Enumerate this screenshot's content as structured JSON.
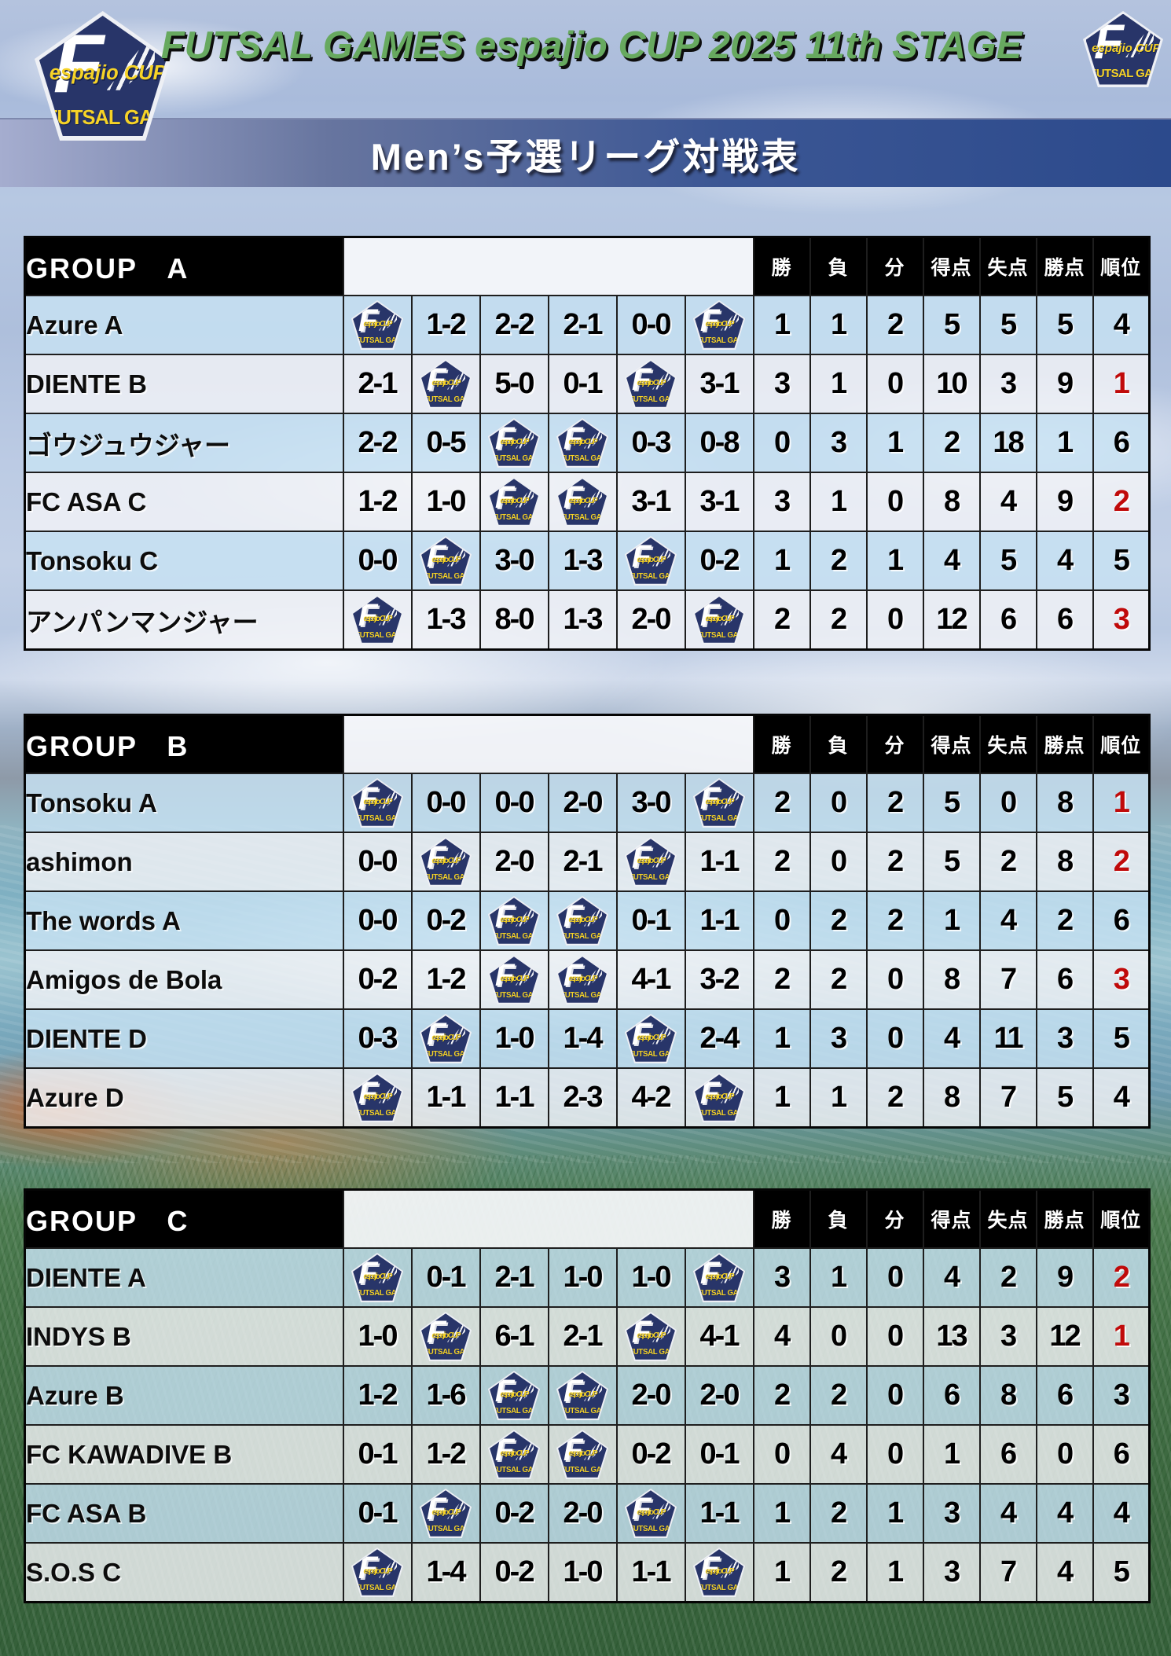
{
  "header": {
    "title": "FUTSAL GAMES espajio CUP 2025 11th STAGE",
    "banner": "Men’s予選リーグ対戦表"
  },
  "logo": {
    "letter": "F",
    "cup": "espajio CUP",
    "games": "FUTSAL GAMES"
  },
  "stat_headers": [
    {
      "key": "win",
      "label": "勝"
    },
    {
      "key": "loss",
      "label": "負"
    },
    {
      "key": "draw",
      "label": "分"
    },
    {
      "key": "goals-for",
      "label": "得点"
    },
    {
      "key": "goals-against",
      "label": "失点"
    },
    {
      "key": "points",
      "label": "勝点"
    },
    {
      "key": "rank",
      "label": "順位"
    }
  ],
  "groups": [
    {
      "label": "GROUP　A",
      "teams": [
        {
          "name": "Azure A",
          "cells": [
            "",
            "1-2",
            "2-2",
            "2-1",
            "0-0",
            ""
          ],
          "stats": [
            1,
            1,
            2,
            5,
            5,
            5
          ],
          "rank": 4,
          "rank_red": false
        },
        {
          "name": "DIENTE B",
          "cells": [
            "2-1",
            "",
            "5-0",
            "0-1",
            "",
            "3-1"
          ],
          "stats": [
            3,
            1,
            0,
            10,
            3,
            9
          ],
          "rank": 1,
          "rank_red": true
        },
        {
          "name": "ゴウジュウジャー",
          "cells": [
            "2-2",
            "0-5",
            "",
            "",
            "0-3",
            "0-8"
          ],
          "stats": [
            0,
            3,
            1,
            2,
            18,
            1
          ],
          "rank": 6,
          "rank_red": false
        },
        {
          "name": "FC ASA C",
          "cells": [
            "1-2",
            "1-0",
            "",
            "",
            "3-1",
            "3-1"
          ],
          "stats": [
            3,
            1,
            0,
            8,
            4,
            9
          ],
          "rank": 2,
          "rank_red": true
        },
        {
          "name": "Tonsoku C",
          "cells": [
            "0-0",
            "",
            "3-0",
            "1-3",
            "",
            "0-2"
          ],
          "stats": [
            1,
            2,
            1,
            4,
            5,
            4
          ],
          "rank": 5,
          "rank_red": false
        },
        {
          "name": "アンパンマンジャー",
          "cells": [
            "",
            "1-3",
            "8-0",
            "1-3",
            "2-0",
            ""
          ],
          "stats": [
            2,
            2,
            0,
            12,
            6,
            6
          ],
          "rank": 3,
          "rank_red": true
        }
      ]
    },
    {
      "label": "GROUP　B",
      "teams": [
        {
          "name": "Tonsoku A",
          "cells": [
            "",
            "0-0",
            "0-0",
            "2-0",
            "3-0",
            ""
          ],
          "stats": [
            2,
            0,
            2,
            5,
            0,
            8
          ],
          "rank": 1,
          "rank_red": true
        },
        {
          "name": "ashimon",
          "cells": [
            "0-0",
            "",
            "2-0",
            "2-1",
            "",
            "1-1"
          ],
          "stats": [
            2,
            0,
            2,
            5,
            2,
            8
          ],
          "rank": 2,
          "rank_red": true
        },
        {
          "name": "The words A",
          "cells": [
            "0-0",
            "0-2",
            "",
            "",
            "0-1",
            "1-1"
          ],
          "stats": [
            0,
            2,
            2,
            1,
            4,
            2
          ],
          "rank": 6,
          "rank_red": false
        },
        {
          "name": "Amigos de Bola",
          "cells": [
            "0-2",
            "1-2",
            "",
            "",
            "4-1",
            "3-2"
          ],
          "stats": [
            2,
            2,
            0,
            8,
            7,
            6
          ],
          "rank": 3,
          "rank_red": true
        },
        {
          "name": "DIENTE D",
          "cells": [
            "0-3",
            "",
            "1-0",
            "1-4",
            "",
            "2-4"
          ],
          "stats": [
            1,
            3,
            0,
            4,
            11,
            3
          ],
          "rank": 5,
          "rank_red": false
        },
        {
          "name": "Azure D",
          "cells": [
            "",
            "1-1",
            "1-1",
            "2-3",
            "4-2",
            ""
          ],
          "stats": [
            1,
            1,
            2,
            8,
            7,
            5
          ],
          "rank": 4,
          "rank_red": false
        }
      ]
    },
    {
      "label": "GROUP　C",
      "teams": [
        {
          "name": "DIENTE A",
          "cells": [
            "",
            "0-1",
            "2-1",
            "1-0",
            "1-0",
            ""
          ],
          "stats": [
            3,
            1,
            0,
            4,
            2,
            9
          ],
          "rank": 2,
          "rank_red": true
        },
        {
          "name": "INDYS B",
          "cells": [
            "1-0",
            "",
            "6-1",
            "2-1",
            "",
            "4-1"
          ],
          "stats": [
            4,
            0,
            0,
            13,
            3,
            12
          ],
          "rank": 1,
          "rank_red": true
        },
        {
          "name": "Azure B",
          "cells": [
            "1-2",
            "1-6",
            "",
            "",
            "2-0",
            "2-0"
          ],
          "stats": [
            2,
            2,
            0,
            6,
            8,
            6
          ],
          "rank": 3,
          "rank_red": false
        },
        {
          "name": "FC KAWADIVE B",
          "cells": [
            "0-1",
            "1-2",
            "",
            "",
            "0-2",
            "0-1"
          ],
          "stats": [
            0,
            4,
            0,
            1,
            6,
            0
          ],
          "rank": 6,
          "rank_red": false
        },
        {
          "name": "FC ASA B",
          "cells": [
            "0-1",
            "",
            "0-2",
            "2-0",
            "",
            "1-1"
          ],
          "stats": [
            1,
            2,
            1,
            3,
            4,
            4
          ],
          "rank": 4,
          "rank_red": false
        },
        {
          "name": "S.O.S C",
          "cells": [
            "",
            "1-4",
            "0-2",
            "1-0",
            "1-1",
            ""
          ],
          "stats": [
            1,
            2,
            1,
            3,
            7,
            4
          ],
          "rank": 5,
          "rank_red": false
        }
      ]
    }
  ]
}
